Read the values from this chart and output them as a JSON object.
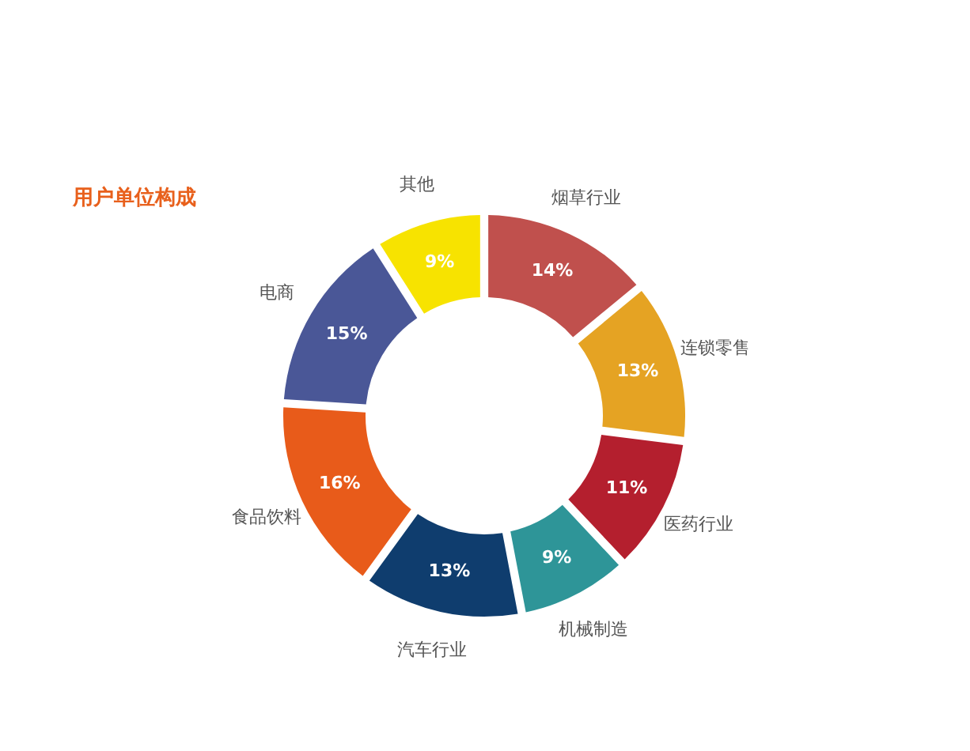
{
  "chart_data": {
    "type": "donut",
    "title": "用户单位构成",
    "categories": [
      "烟草行业",
      "连锁零售",
      "医药行业",
      "机械制造",
      "汽车行业",
      "食品饮料",
      "电商",
      "其他"
    ],
    "values": [
      14,
      13,
      11,
      9,
      13,
      16,
      15,
      9
    ],
    "value_labels": [
      "14%",
      "13%",
      "11%",
      "9%",
      "13%",
      "16%",
      "15%",
      "9%"
    ],
    "colors": [
      "#c0504d",
      "#e5a323",
      "#b41f2e",
      "#2e9598",
      "#0f3d6e",
      "#e85b1a",
      "#4a5797",
      "#f7e300"
    ]
  }
}
